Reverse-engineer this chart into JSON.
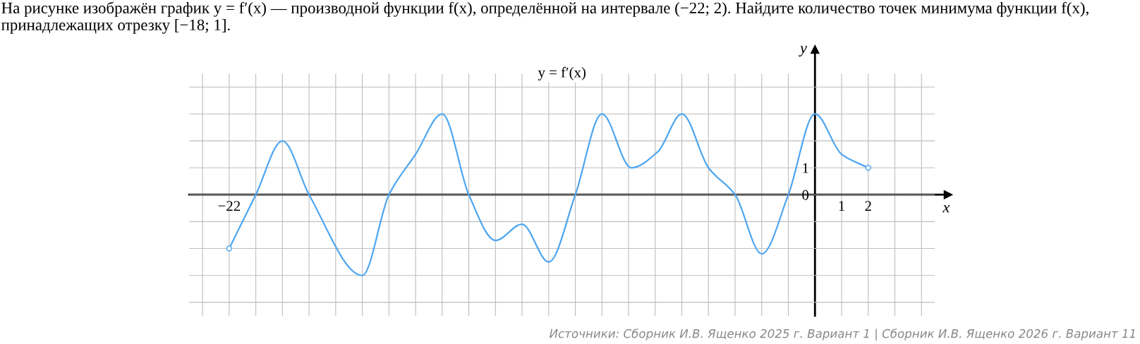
{
  "chart_data": {
    "type": "line",
    "title": "На рисунке изображён график y = f′(x) — производной функции f(x), определённой на интервале (−22; 2). Найдите количество точек минимума функции f(x), принадлежащих отрезку [−18; 1].",
    "xlabel": "x",
    "ylabel": "y",
    "x": [
      -22,
      -21,
      -20,
      -19,
      -17,
      -16,
      -15,
      -14,
      -13,
      -12,
      -11,
      -10,
      -9,
      -8,
      -6.9,
      -5.9,
      -5,
      -4,
      -3,
      -2,
      -1,
      0,
      1,
      2
    ],
    "series": [
      {
        "name": "y = f′(x)",
        "color": "#4ea6f0",
        "values": [
          -2,
          0,
          2,
          0,
          -3,
          0,
          1.5,
          3,
          0,
          -1.7,
          -1.1,
          -2.5,
          0,
          3,
          1,
          1.6,
          3,
          1,
          0,
          -2.2,
          0,
          3,
          1.5,
          1
        ]
      },
      {
        "type": "scatter",
        "x": [
          -22,
          2
        ],
        "color": "#4ea6f0",
        "marker": "circle",
        "values": [
          -2,
          1
        ]
      }
    ],
    "xlim": [
      -23.5,
      4.5
    ],
    "ylim": [
      -4.5,
      4.5
    ],
    "xticks": [
      {
        "value": -23,
        "label": null
      },
      {
        "value": -22,
        "label": "−22"
      },
      {
        "value": -21,
        "label": null
      },
      {
        "value": -20,
        "label": null
      },
      {
        "value": -19,
        "label": null
      },
      {
        "value": -18,
        "label": null
      },
      {
        "value": -17,
        "label": null
      },
      {
        "value": -16,
        "label": null
      },
      {
        "value": -15,
        "label": null
      },
      {
        "value": -14,
        "label": null
      },
      {
        "value": -13,
        "label": null
      },
      {
        "value": -12,
        "label": null
      },
      {
        "value": -11,
        "label": null
      },
      {
        "value": -10,
        "label": null
      },
      {
        "value": -9,
        "label": null
      },
      {
        "value": -8,
        "label": null
      },
      {
        "value": -7,
        "label": null
      },
      {
        "value": -6,
        "label": null
      },
      {
        "value": -5,
        "label": null
      },
      {
        "value": -4,
        "label": null
      },
      {
        "value": -3,
        "label": null
      },
      {
        "value": -2,
        "label": null
      },
      {
        "value": -1,
        "label": null
      },
      {
        "value": 0,
        "label": null
      },
      {
        "value": 1,
        "label": "1"
      },
      {
        "value": 2,
        "label": "2"
      },
      {
        "value": 3,
        "label": null
      },
      {
        "value": 4,
        "label": null
      }
    ],
    "yticks": [
      {
        "value": -4,
        "label": null
      },
      {
        "value": -3,
        "label": null
      },
      {
        "value": -2,
        "label": null
      },
      {
        "value": -1,
        "label": null
      },
      {
        "value": 0,
        "label": "0"
      },
      {
        "value": 1,
        "label": "1"
      },
      {
        "value": 2,
        "label": null
      },
      {
        "value": 3,
        "label": null
      },
      {
        "value": 4,
        "label": null
      }
    ],
    "grid": true,
    "line_style": "solid",
    "annotations": [
      "Источники: Сборник И.В. Ященко 2025 г. Вариант 1 | Сборник И.В. Ященко 2026 г. Вариант 11"
    ]
  }
}
